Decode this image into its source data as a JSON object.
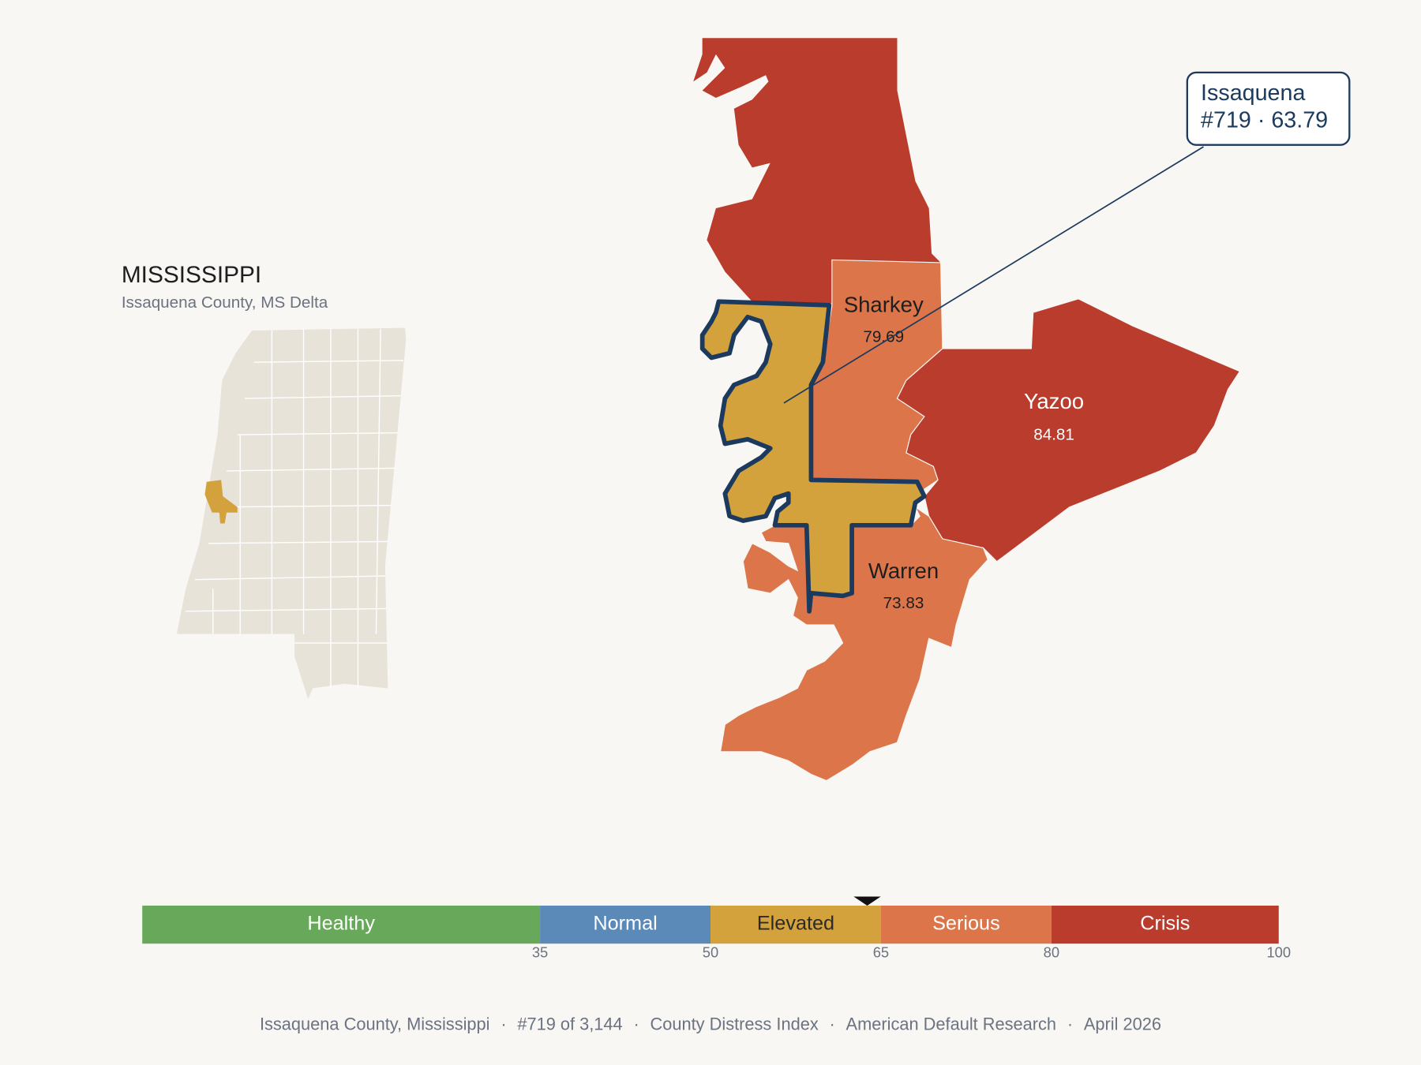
{
  "header": {
    "title": "MISSISSIPPI",
    "subtitle": "Issaquena County, MS Delta"
  },
  "counties": [
    {
      "name": "Sharkey",
      "value": "79.69"
    },
    {
      "name": "Yazoo",
      "value": "84.81"
    },
    {
      "name": "Warren",
      "value": "73.83"
    }
  ],
  "callout": {
    "lines": [
      "Issaquena",
      "#719 · 63.79"
    ]
  },
  "scale": {
    "min": 0,
    "max": 100,
    "marker": 63.79,
    "ticks": [
      35,
      50,
      65,
      80,
      100
    ],
    "bands": [
      {
        "label": "Healthy",
        "end": 35,
        "color": "#67a85a",
        "text_color": "#ffffff"
      },
      {
        "label": "Normal",
        "end": 50,
        "color": "#5b8ab8",
        "text_color": "#ffffff"
      },
      {
        "label": "Elevated",
        "end": 65,
        "color": "#d4a23c",
        "text_color": "#2a2a2a"
      },
      {
        "label": "Serious",
        "end": 80,
        "color": "#dc754a",
        "text_color": "#ffffff"
      },
      {
        "label": "Crisis",
        "end": 100,
        "color": "#b93c2c",
        "text_color": "#ffffff"
      }
    ]
  },
  "footer": {
    "separator": "·",
    "items": [
      "Issaquena County, Mississippi",
      "#719 of 3,144",
      "County Distress Index",
      "American Default Research",
      "April 2026"
    ]
  }
}
